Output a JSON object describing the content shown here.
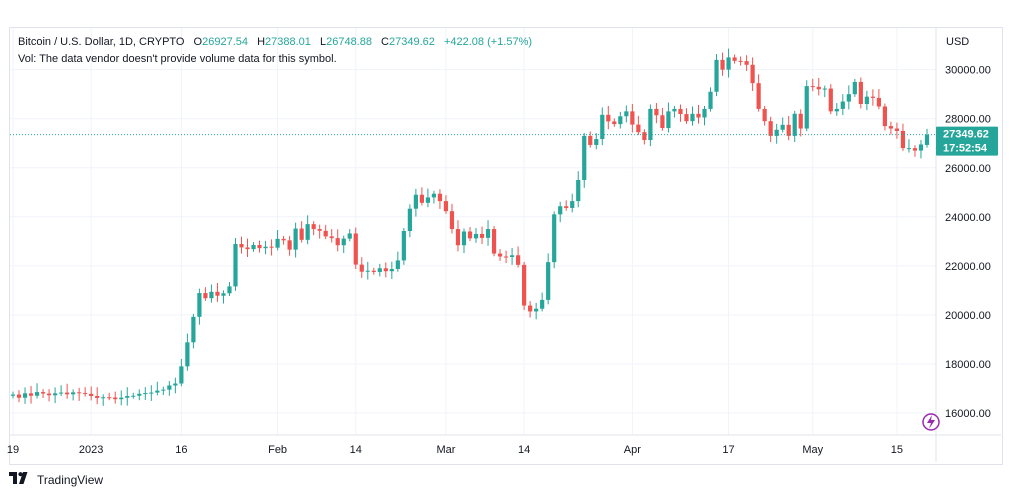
{
  "legend": {
    "symbol": "Bitcoin / U.S. Dollar, 1D, CRYPTO",
    "o_label": "O",
    "o_value": "26927.54",
    "h_label": "H",
    "h_value": "27388.01",
    "l_label": "L",
    "l_value": "26748.88",
    "c_label": "C",
    "c_value": "27349.62",
    "change": "+422.08 (+1.57%)",
    "volume_note": "Vol: The data vendor doesn't provide volume data for this symbol."
  },
  "price_axis": {
    "currency": "USD",
    "ticks": [
      "30000.00",
      "28000.00",
      "26000.00",
      "24000.00",
      "22000.00",
      "20000.00",
      "18000.00",
      "16000.00"
    ]
  },
  "last_price_badge": {
    "price": "27349.62",
    "countdown": "17:52:54"
  },
  "footer": {
    "brand": "TradingView",
    "logo_icon": "tradingview-logo-icon"
  },
  "colors": {
    "up": "#26a69a",
    "down": "#ef5350",
    "grid": "#f0f3fa",
    "axis_text": "#131722",
    "flash_icon": "#9c27b0"
  },
  "chart_data": {
    "type": "candlestick",
    "title": "Bitcoin / U.S. Dollar, 1D, CRYPTO",
    "ylim": [
      15100,
      31700
    ],
    "ylabel": "USD",
    "grid": true,
    "x_tick_labels": [
      {
        "label": "19",
        "index": 0
      },
      {
        "label": "2023",
        "index": 13
      },
      {
        "label": "16",
        "index": 28
      },
      {
        "label": "Feb",
        "index": 44
      },
      {
        "label": "14",
        "index": 57
      },
      {
        "label": "Mar",
        "index": 72
      },
      {
        "label": "14",
        "index": 85
      },
      {
        "label": "Apr",
        "index": 103
      },
      {
        "label": "17",
        "index": 119
      },
      {
        "label": "May",
        "index": 133
      },
      {
        "label": "15",
        "index": 147
      }
    ],
    "closes": [
      16750,
      16620,
      16800,
      16700,
      16850,
      16790,
      16720,
      16800,
      16830,
      16760,
      16840,
      16810,
      16780,
      16690,
      16610,
      16640,
      16630,
      16560,
      16620,
      16690,
      16700,
      16780,
      16810,
      16830,
      16910,
      16950,
      17120,
      17200,
      17900,
      18880,
      19920,
      20890,
      20680,
      20940,
      20780,
      20880,
      21160,
      22890,
      22750,
      22680,
      22850,
      22720,
      22780,
      22740,
      23100,
      23040,
      22660,
      23520,
      23060,
      23700,
      23500,
      23430,
      23200,
      23130,
      22840,
      23110,
      23320,
      22050,
      21760,
      21800,
      21750,
      21900,
      21780,
      21870,
      22220,
      23420,
      24330,
      24900,
      24570,
      24790,
      24940,
      24640,
      24230,
      23500,
      22840,
      23400,
      23120,
      23300,
      23140,
      23500,
      22500,
      22380,
      22360,
      22430,
      22040,
      20380,
      20140,
      20250,
      20610,
      22150,
      24100,
      24430,
      24360,
      24640,
      25500,
      27300,
      26930,
      27170,
      28160,
      27890,
      27780,
      28100,
      28300,
      27760,
      27450,
      27130,
      28400,
      28140,
      27620,
      28300,
      28400,
      28190,
      27900,
      28200,
      28050,
      28400,
      29100,
      30400,
      30000,
      30500,
      30360,
      30350,
      30200,
      29450,
      28400,
      27900,
      27300,
      27550,
      27750,
      27300,
      28200,
      27600,
      29330,
      29300,
      29200,
      29230,
      28300,
      28400,
      28700,
      29000,
      29500,
      28600,
      28900,
      28850,
      28500,
      27700,
      27600,
      27500,
      26800,
      26800,
      26700,
      26950,
      27350
    ],
    "opens": [
      16700,
      16750,
      16620,
      16800,
      16700,
      16850,
      16790,
      16720,
      16800,
      16830,
      16760,
      16840,
      16810,
      16780,
      16690,
      16610,
      16640,
      16630,
      16560,
      16620,
      16690,
      16700,
      16780,
      16810,
      16830,
      16910,
      16950,
      17120,
      17200,
      17900,
      18880,
      19920,
      20890,
      20680,
      20940,
      20780,
      20880,
      21160,
      22890,
      22750,
      22680,
      22850,
      22720,
      22780,
      22740,
      23100,
      23040,
      22660,
      23520,
      23060,
      23700,
      23500,
      23430,
      23200,
      23130,
      22840,
      23110,
      23320,
      22050,
      21760,
      21800,
      21750,
      21900,
      21780,
      21870,
      22220,
      23420,
      24330,
      24900,
      24570,
      24790,
      24940,
      24640,
      24230,
      23500,
      22840,
      23400,
      23120,
      23300,
      23140,
      23500,
      22500,
      22380,
      22360,
      22430,
      22040,
      20380,
      20140,
      20250,
      20610,
      22150,
      24100,
      24430,
      24360,
      24640,
      25500,
      27300,
      26930,
      27170,
      28160,
      27890,
      27780,
      28100,
      28300,
      27760,
      27450,
      27130,
      28400,
      28140,
      27620,
      28300,
      28400,
      28190,
      27900,
      28200,
      28050,
      28400,
      29100,
      30400,
      30000,
      30500,
      30360,
      30350,
      30200,
      29450,
      28400,
      27900,
      27300,
      27550,
      27750,
      27300,
      28200,
      27600,
      29330,
      29300,
      29200,
      29230,
      28300,
      28400,
      28700,
      29000,
      29500,
      28600,
      28900,
      28850,
      28500,
      27700,
      27600,
      27500,
      26800,
      26800,
      26700,
      26930
    ]
  }
}
